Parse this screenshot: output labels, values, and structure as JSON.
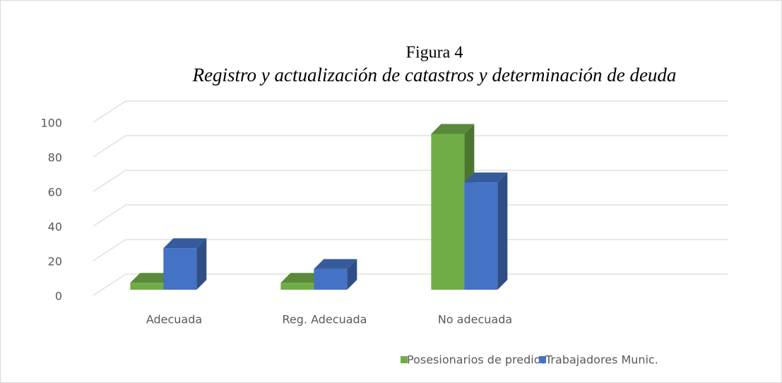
{
  "chart_data": {
    "type": "bar3d",
    "title": "Figura 4",
    "subtitle": "Registro y actualización de catastros y determinación de deuda",
    "categories": [
      "Adecuada",
      "Reg. Adecuada",
      "No adecuada"
    ],
    "series": [
      {
        "name": "Posesionarios de predios",
        "color": "#70ad47",
        "values": [
          4,
          4,
          90
        ]
      },
      {
        "name": "Trabajadores Munic.",
        "color": "#4472c4",
        "values": [
          24,
          12,
          62
        ]
      }
    ],
    "ylim": [
      0,
      100
    ],
    "yticks": [
      0,
      20,
      40,
      60,
      80,
      100
    ],
    "grid": true,
    "legend": "bottom"
  }
}
